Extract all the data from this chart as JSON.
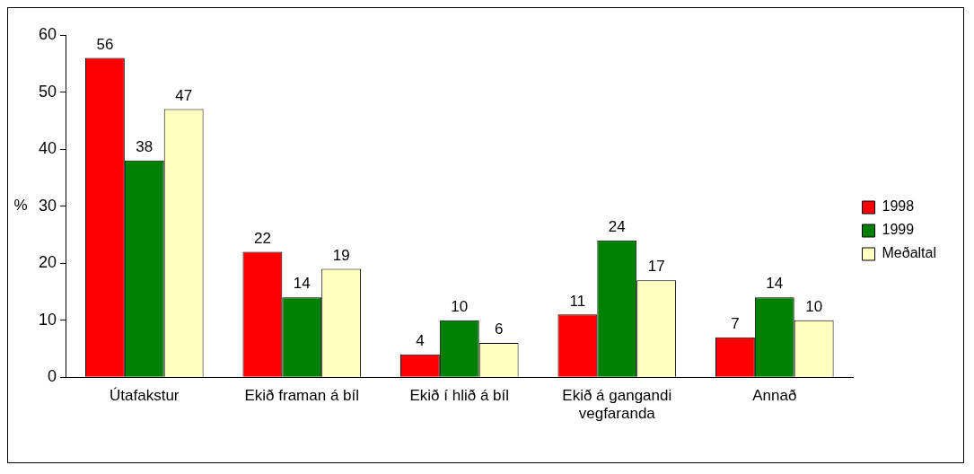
{
  "chart_data": {
    "type": "bar",
    "ylabel": "%",
    "categories": [
      "Útafakstur",
      "Ekið framan á bíl",
      "Ekið í hlið á bíl",
      "Ekið á gangandi vegfaranda",
      "Annað"
    ],
    "series": [
      {
        "name": "1998",
        "color": "#ff0000",
        "values": [
          56,
          22,
          4,
          11,
          7
        ]
      },
      {
        "name": "1999",
        "color": "#008000",
        "values": [
          38,
          14,
          10,
          24,
          14
        ]
      },
      {
        "name": "Meðaltal",
        "color": "#ffffc0",
        "values": [
          47,
          19,
          6,
          17,
          10
        ]
      }
    ],
    "ylim": [
      0,
      60
    ],
    "yticks": [
      0,
      10,
      20,
      30,
      40,
      50,
      60
    ],
    "grid": false,
    "legend": "right",
    "data_labels": true
  }
}
